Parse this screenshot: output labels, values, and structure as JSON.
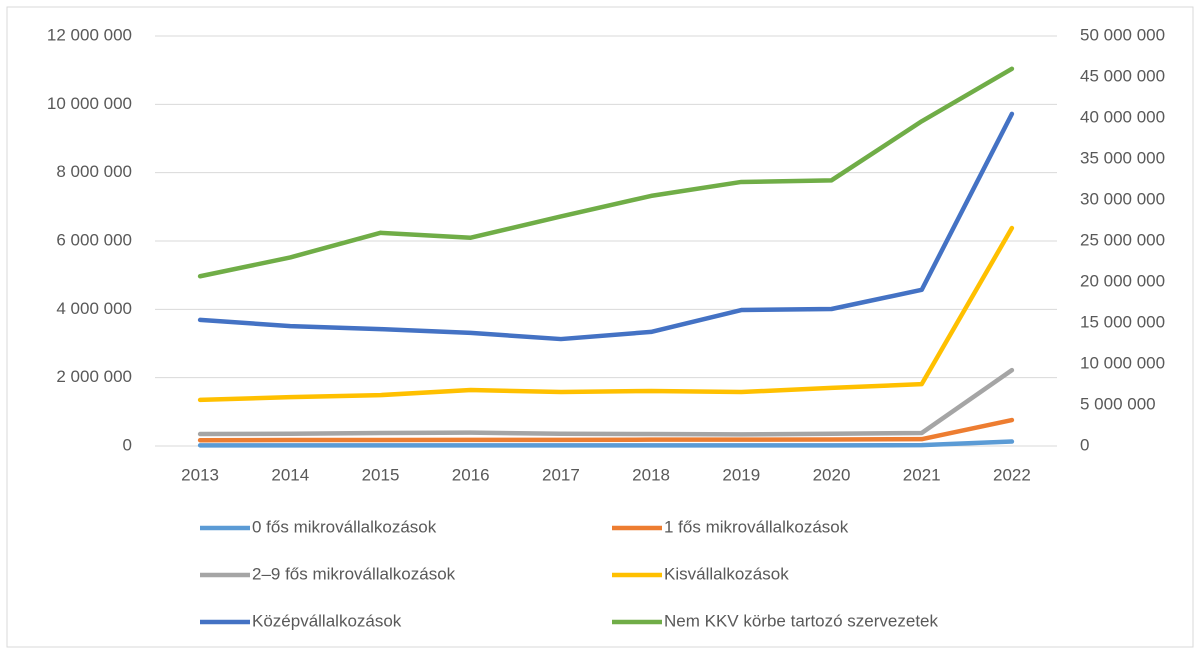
{
  "chart_data": {
    "type": "line",
    "categories": [
      "2013",
      "2014",
      "2015",
      "2016",
      "2017",
      "2018",
      "2019",
      "2020",
      "2021",
      "2022"
    ],
    "series": [
      {
        "name": "0 fős mikrovállalkozások",
        "color": "#5b9bd5",
        "values": [
          20000,
          20000,
          20000,
          20000,
          20000,
          20000,
          20000,
          20000,
          25000,
          130000
        ]
      },
      {
        "name": "1 fős mikrovállalkozások",
        "color": "#ed7d31",
        "values": [
          170000,
          175000,
          175000,
          180000,
          180000,
          185000,
          185000,
          190000,
          200000,
          760000
        ]
      },
      {
        "name": "2–9 fős mikrovállalkozások",
        "color": "#a5a5a5",
        "values": [
          350000,
          360000,
          380000,
          390000,
          360000,
          350000,
          340000,
          360000,
          380000,
          2220000
        ]
      },
      {
        "name": "Kisvállalkozások",
        "color": "#ffc000",
        "values": [
          1350000,
          1430000,
          1490000,
          1640000,
          1580000,
          1610000,
          1580000,
          1700000,
          1810000,
          6380000
        ]
      },
      {
        "name": "Középvállalkozások",
        "color": "#4472c4",
        "values": [
          3690000,
          3510000,
          3420000,
          3310000,
          3130000,
          3340000,
          3980000,
          4010000,
          4570000,
          9720000
        ]
      },
      {
        "name": "Nem KKV körbe tartozó szervezetek",
        "color": "#70ad47",
        "axis": "y2",
        "values": [
          20700000,
          23000000,
          26000000,
          25400000,
          28000000,
          30500000,
          32200000,
          32400000,
          39600000,
          46000000
        ]
      }
    ],
    "ylim": [
      0,
      12000000
    ],
    "yticks": [
      0,
      {
        "value": 2000000,
        "label": "2 000 000"
      },
      {
        "value": 4000000,
        "label": "4 000 000"
      },
      {
        "value": 6000000,
        "label": "6 000 000"
      },
      {
        "value": 8000000,
        "label": "8 000 000"
      },
      {
        "value": 10000000,
        "label": "10 000 000"
      },
      {
        "value": 12000000,
        "label": "12 000 000"
      }
    ],
    "y2lim": [
      0,
      50000000
    ],
    "y2ticks": [
      0,
      {
        "value": 5000000,
        "label": "5 000 000"
      },
      {
        "value": 10000000,
        "label": "10 000 000"
      },
      {
        "value": 15000000,
        "label": "15 000 000"
      },
      {
        "value": 20000000,
        "label": "20 000 000"
      },
      {
        "value": 25000000,
        "label": "25 000 000"
      },
      {
        "value": 30000000,
        "label": "30 000 000"
      },
      {
        "value": 35000000,
        "label": "35 000 000"
      },
      {
        "value": 40000000,
        "label": "40 000 000"
      },
      {
        "value": 45000000,
        "label": "45 000 000"
      },
      {
        "value": 50000000,
        "label": "50 000 000"
      }
    ],
    "grid": true,
    "legend": "bottom"
  }
}
